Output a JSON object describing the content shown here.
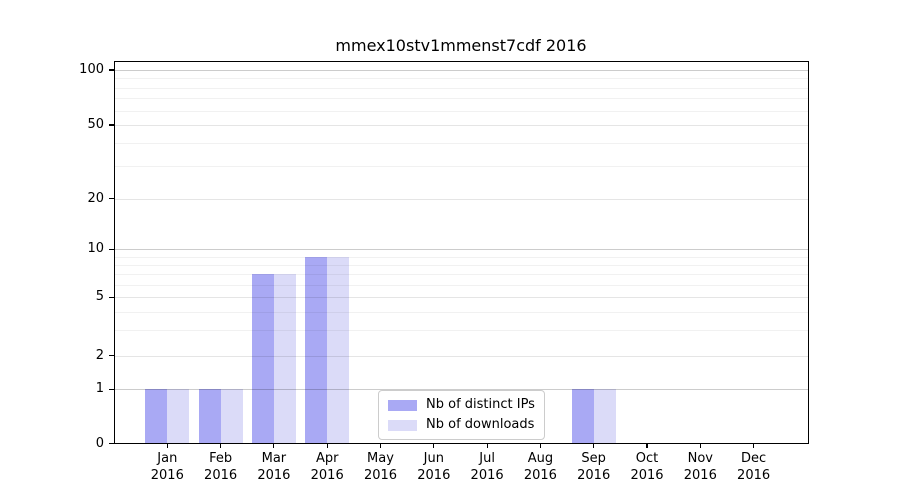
{
  "chart_data": {
    "type": "bar",
    "title": "mmex10stv1mmenst7cdf 2016",
    "categories": [
      {
        "month": "Jan",
        "year": "2016"
      },
      {
        "month": "Feb",
        "year": "2016"
      },
      {
        "month": "Mar",
        "year": "2016"
      },
      {
        "month": "Apr",
        "year": "2016"
      },
      {
        "month": "May",
        "year": "2016"
      },
      {
        "month": "Jun",
        "year": "2016"
      },
      {
        "month": "Jul",
        "year": "2016"
      },
      {
        "month": "Aug",
        "year": "2016"
      },
      {
        "month": "Sep",
        "year": "2016"
      },
      {
        "month": "Oct",
        "year": "2016"
      },
      {
        "month": "Nov",
        "year": "2016"
      },
      {
        "month": "Dec",
        "year": "2016"
      }
    ],
    "series": [
      {
        "name": "Nb of distinct IPs",
        "color": "#a9a9f4",
        "values": [
          1,
          1,
          7,
          9,
          0,
          0,
          0,
          0,
          1,
          0,
          0,
          0
        ]
      },
      {
        "name": "Nb of downloads",
        "color": "#dbdbf8",
        "values": [
          1,
          1,
          7,
          9,
          0,
          0,
          0,
          0,
          1,
          0,
          0,
          0
        ]
      }
    ],
    "y_axis": {
      "scale": "symlog",
      "range": [
        0,
        110
      ],
      "ticks": [
        0,
        1,
        2,
        5,
        10,
        20,
        50,
        100
      ],
      "major_gridlines": [
        1,
        10,
        100
      ],
      "mid_gridlines": [
        2,
        5,
        20,
        50
      ],
      "minor_gridlines": [
        3,
        4,
        6,
        7,
        8,
        9,
        30,
        40,
        60,
        70,
        80,
        90
      ]
    },
    "legend": {
      "position": "inside-bottom-center"
    },
    "grid": true,
    "colors": {
      "background": "#ffffff",
      "frame": "#000000",
      "text": "#000000",
      "major_grid": "rgba(0,0,0,0.20)",
      "mid_grid": "rgba(0,0,0,0.10)",
      "minor_grid": "rgba(0,0,0,0.055)"
    }
  }
}
